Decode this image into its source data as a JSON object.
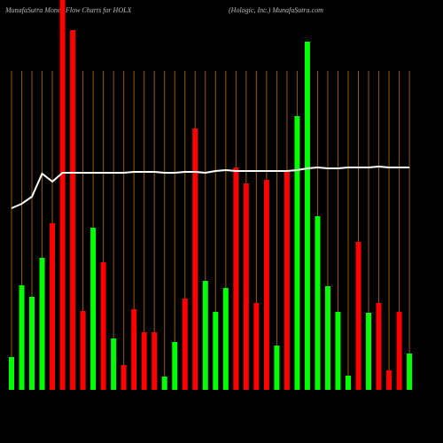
{
  "chart_data": {
    "type": "bar",
    "title": "MunafaSutra  Money Flow  Charts for HOLX",
    "subtitle": "(Hologic, Inc.) MunafaSutra.com",
    "values": [
      37,
      118,
      105,
      149,
      188,
      440,
      406,
      89,
      183,
      144,
      58,
      28,
      91,
      65,
      65,
      15,
      54,
      103,
      295,
      123,
      88,
      115,
      251,
      233,
      98,
      237,
      50,
      246,
      309,
      393,
      196,
      117,
      88,
      16,
      167,
      87,
      98,
      22,
      88,
      41
    ],
    "colors": [
      "#00ff00",
      "#00ff00",
      "#00ff00",
      "#00ff00",
      "#ff0000",
      "#ff0000",
      "#ff0000",
      "#ff0000",
      "#00ff00",
      "#ff0000",
      "#00ff00",
      "#ff0000",
      "#ff0000",
      "#ff0000",
      "#ff0000",
      "#00ff00",
      "#00ff00",
      "#ff0000",
      "#ff0000",
      "#00ff00",
      "#00ff00",
      "#00ff00",
      "#ff0000",
      "#ff0000",
      "#ff0000",
      "#ff0000",
      "#00ff00",
      "#ff0000",
      "#00ff00",
      "#00ff00",
      "#00ff00",
      "#00ff00",
      "#00ff00",
      "#00ff00",
      "#ff0000",
      "#00ff00",
      "#ff0000",
      "#ff0000",
      "#ff0000",
      "#00ff00"
    ],
    "line": {
      "color": "#ffffff",
      "values": [
        205,
        210,
        218,
        244,
        235,
        245,
        245,
        245,
        245,
        245,
        245,
        245,
        246,
        246,
        246,
        245,
        245,
        246,
        246,
        245,
        247,
        248,
        247,
        247,
        247,
        247,
        247,
        247,
        248,
        250,
        251,
        250,
        250,
        251,
        251,
        251,
        252,
        251,
        251,
        251
      ]
    },
    "ylim": [
      0,
      440
    ],
    "grid": true,
    "grid_color": "#9a5a00"
  }
}
